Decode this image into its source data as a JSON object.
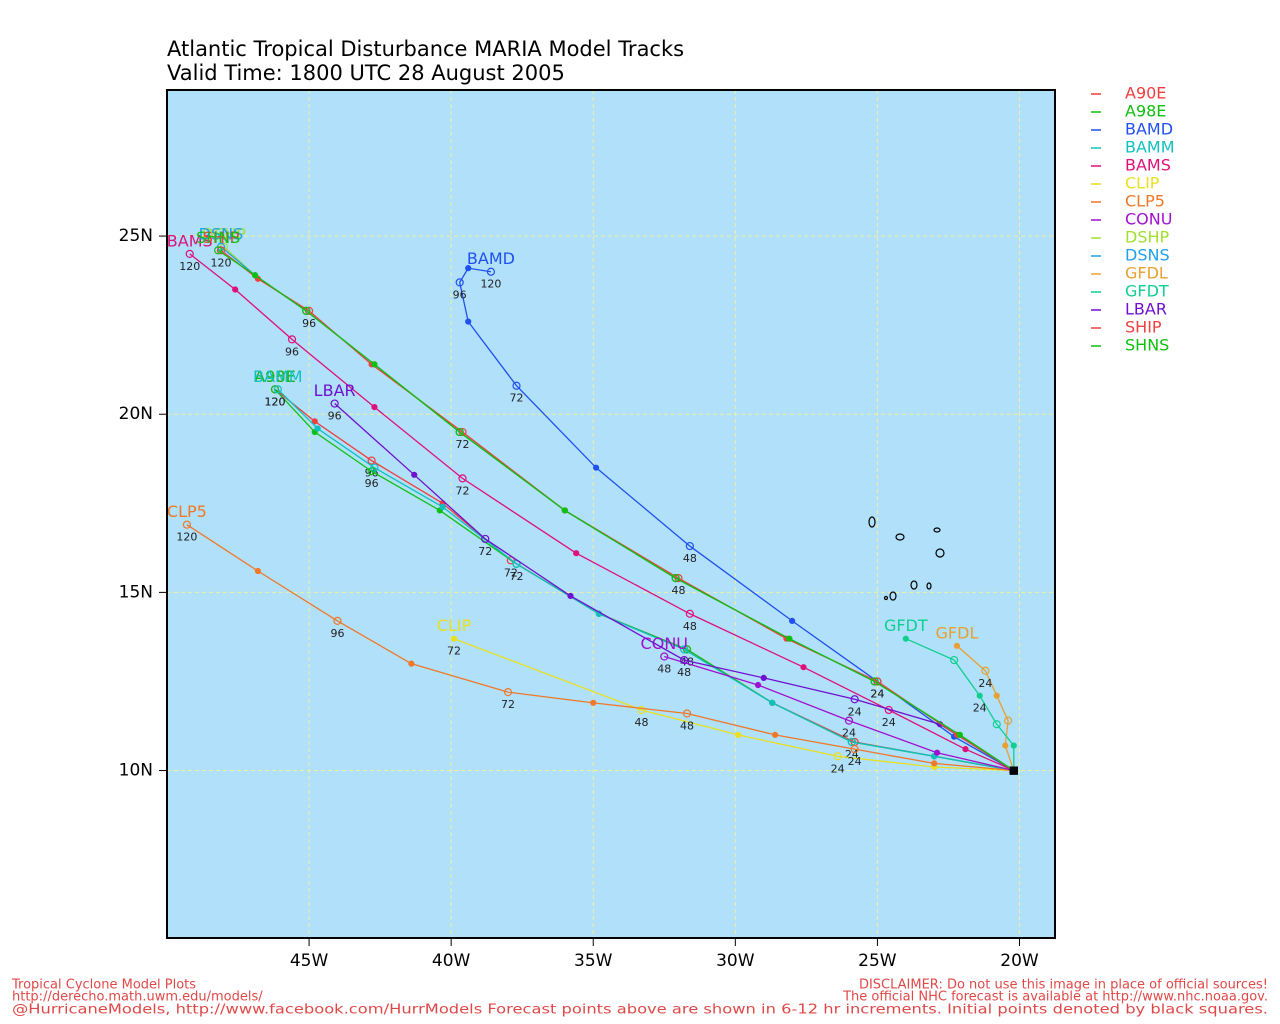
{
  "chart_data": {
    "type": "line",
    "title": "Atlantic Tropical Disturbance MARIA Model Tracks",
    "subtitle": "Valid Time: 1800 UTC 28 August 2005",
    "xlim": [
      -50,
      -18.75
    ],
    "ylim": [
      5.3,
      29.1
    ],
    "xticks": [
      {
        "value": -45,
        "label": "45W"
      },
      {
        "value": -40,
        "label": "40W"
      },
      {
        "value": -35,
        "label": "35W"
      },
      {
        "value": -30,
        "label": "30W"
      },
      {
        "value": -25,
        "label": "25W"
      },
      {
        "value": -20,
        "label": "20W"
      }
    ],
    "yticks": [
      {
        "value": 10,
        "label": "10N"
      },
      {
        "value": 15,
        "label": "15N"
      },
      {
        "value": 20,
        "label": "20N"
      },
      {
        "value": 25,
        "label": "25N"
      }
    ],
    "grid": true,
    "background": "#b0e0fa",
    "series": [
      {
        "name": "A90E",
        "color": "#f03c3c",
        "x": [
          -20.2,
          -23.0,
          -25.8,
          -28.7,
          -31.7,
          -34.8,
          -37.9,
          -40.3,
          -42.8,
          -44.8,
          -46.2
        ],
        "values": [
          10.0,
          10.4,
          10.8,
          11.9,
          13.4,
          14.4,
          15.9,
          17.5,
          18.7,
          19.8,
          20.7
        ],
        "hour_labels": [
          null,
          null,
          null,
          null,
          null,
          null,
          72,
          null,
          96,
          null,
          120
        ]
      },
      {
        "name": "A98E",
        "color": "#10c010",
        "x": [
          -20.2,
          -23.0,
          -25.9,
          -28.7,
          -31.7,
          -34.8,
          -37.7,
          -40.4,
          -42.8,
          -44.8,
          -46.2
        ],
        "values": [
          10.0,
          10.4,
          10.8,
          11.9,
          13.4,
          14.4,
          15.8,
          17.3,
          18.4,
          19.5,
          20.7
        ],
        "hour_labels": [
          null,
          null,
          24,
          null,
          48,
          null,
          72,
          null,
          96,
          null,
          120
        ]
      },
      {
        "name": "BAMD",
        "color": "#2050f0",
        "x": [
          -20.2,
          -22.3,
          -25.0,
          -28.0,
          -31.6,
          -34.9,
          -37.7,
          -39.4,
          -39.7,
          -39.4,
          -38.6
        ],
        "values": [
          10.0,
          10.95,
          12.5,
          14.2,
          16.3,
          18.5,
          20.8,
          22.6,
          23.7,
          24.1,
          24.0
        ],
        "hour_labels": [
          null,
          null,
          24,
          null,
          48,
          null,
          72,
          null,
          96,
          null,
          120
        ]
      },
      {
        "name": "BAMM",
        "color": "#10c0c0",
        "x": [
          -20.2,
          -23.0,
          -25.9,
          -28.7,
          -31.8,
          -34.8,
          -37.7,
          -40.3,
          -42.7,
          -44.7,
          -46.1
        ],
        "values": [
          10.0,
          10.4,
          10.8,
          11.9,
          13.4,
          14.4,
          15.8,
          17.4,
          18.5,
          19.6,
          20.7
        ]
      },
      {
        "name": "BAMS",
        "color": "#e0107a",
        "x": [
          -20.2,
          -21.9,
          -24.6,
          -27.6,
          -31.6,
          -35.6,
          -39.6,
          -42.7,
          -45.6,
          -47.6,
          -49.2
        ],
        "values": [
          10.0,
          10.6,
          11.7,
          12.9,
          14.4,
          16.1,
          18.2,
          20.2,
          22.1,
          23.5,
          24.5
        ],
        "hour_labels": [
          null,
          null,
          24,
          null,
          48,
          null,
          72,
          null,
          96,
          null,
          120
        ]
      },
      {
        "name": "CLIP",
        "color": "#e8e020",
        "x": [
          -20.2,
          -23.0,
          -26.4,
          -29.9,
          -33.3,
          -39.9
        ],
        "values": [
          10.0,
          10.1,
          10.4,
          11.0,
          11.7,
          13.7
        ],
        "hour_labels": [
          null,
          null,
          24,
          null,
          48,
          72
        ]
      },
      {
        "name": "CLP5",
        "color": "#f07828",
        "x": [
          -20.2,
          -23.0,
          -25.8,
          -28.6,
          -31.7,
          -35.0,
          -38.0,
          -41.4,
          -44.0,
          -46.8,
          -49.3
        ],
        "values": [
          10.0,
          10.2,
          10.6,
          11.0,
          11.6,
          11.9,
          12.2,
          13.0,
          14.2,
          15.6,
          16.9
        ],
        "hour_labels": [
          null,
          null,
          24,
          null,
          48,
          null,
          72,
          null,
          96,
          null,
          120
        ]
      },
      {
        "name": "CONU",
        "color": "#a010d0",
        "x": [
          -20.2,
          -22.9,
          -26.0,
          -29.2,
          -32.5
        ],
        "values": [
          10.0,
          10.5,
          11.4,
          12.4,
          13.2
        ],
        "hour_labels": [
          null,
          null,
          24,
          null,
          48
        ]
      },
      {
        "name": "DSHP",
        "color": "#a0e030",
        "x": [
          -20.2,
          -22.1,
          -25.1,
          -28.1,
          -32.1,
          -36.0,
          -39.7,
          -42.7,
          -45.1,
          -46.9,
          -48.0
        ],
        "values": [
          10.0,
          11.0,
          12.5,
          13.7,
          15.4,
          17.3,
          19.5,
          21.4,
          22.9,
          23.9,
          24.7
        ]
      },
      {
        "name": "DSNS",
        "color": "#20a0e8",
        "x": [
          -20.2,
          -22.1,
          -25.1,
          -28.1,
          -32.1,
          -36.0,
          -39.7,
          -42.7,
          -45.1,
          -46.9,
          -48.1
        ],
        "values": [
          10.0,
          11.0,
          12.5,
          13.7,
          15.4,
          17.3,
          19.5,
          21.4,
          22.9,
          23.9,
          24.7
        ]
      },
      {
        "name": "GFDL",
        "color": "#e8a030",
        "x": [
          -20.2,
          -20.5,
          -20.4,
          -20.8,
          -21.2,
          -22.2
        ],
        "values": [
          10.0,
          10.7,
          11.4,
          12.1,
          12.8,
          13.5
        ],
        "hour_labels": [
          null,
          null,
          null,
          null,
          24,
          null
        ]
      },
      {
        "name": "GFDT",
        "color": "#10d090",
        "x": [
          -20.2,
          -20.2,
          -20.8,
          -21.4,
          -22.3,
          -24.0
        ],
        "values": [
          10.0,
          10.7,
          11.3,
          12.1,
          13.1,
          13.7
        ],
        "hour_labels": [
          null,
          null,
          null,
          24,
          null,
          null
        ]
      },
      {
        "name": "LBAR",
        "color": "#7010d0",
        "x": [
          -20.2,
          -22.8,
          -25.8,
          -29.0,
          -31.8,
          -35.8,
          -38.8,
          -41.3,
          -44.1
        ],
        "values": [
          10.0,
          11.3,
          12.0,
          12.6,
          13.1,
          14.9,
          16.5,
          18.3,
          20.3
        ],
        "hour_labels": [
          null,
          null,
          24,
          null,
          48,
          null,
          72,
          null,
          96
        ]
      },
      {
        "name": "SHIP",
        "color": "#f04040",
        "x": [
          -20.2,
          -22.2,
          -25.0,
          -28.2,
          -32.0,
          -36.0,
          -39.6,
          -42.8,
          -45.0,
          -46.8,
          -48.1
        ],
        "values": [
          10.0,
          11.0,
          12.5,
          13.7,
          15.4,
          17.3,
          19.5,
          21.4,
          22.9,
          23.8,
          24.6
        ],
        "hour_labels": [
          null,
          null,
          24,
          null,
          48,
          null,
          72,
          null,
          96,
          null,
          120
        ]
      },
      {
        "name": "SHNS",
        "color": "#10c010",
        "x": [
          -20.2,
          -22.1,
          -25.1,
          -28.1,
          -32.1,
          -36.0,
          -39.7,
          -42.7,
          -45.1,
          -46.9,
          -48.2
        ],
        "values": [
          10.0,
          11.0,
          12.5,
          13.7,
          15.4,
          17.3,
          19.5,
          21.4,
          22.9,
          23.9,
          24.6
        ]
      }
    ],
    "footer_left": [
      "Tropical Cyclone Model Plots",
      "http://derecho.math.uwm.edu/models/",
      "@HurricaneModels, http://www.facebook.com/HurrModels  Forecast points above are shown in 6-12 hr increments. Initial points denoted by black squares."
    ],
    "footer_right": [
      "DISCLAIMER: Do not use this image in place of official sources!",
      "The official NHC forecast is available at http://www.nhc.noaa.gov."
    ]
  }
}
